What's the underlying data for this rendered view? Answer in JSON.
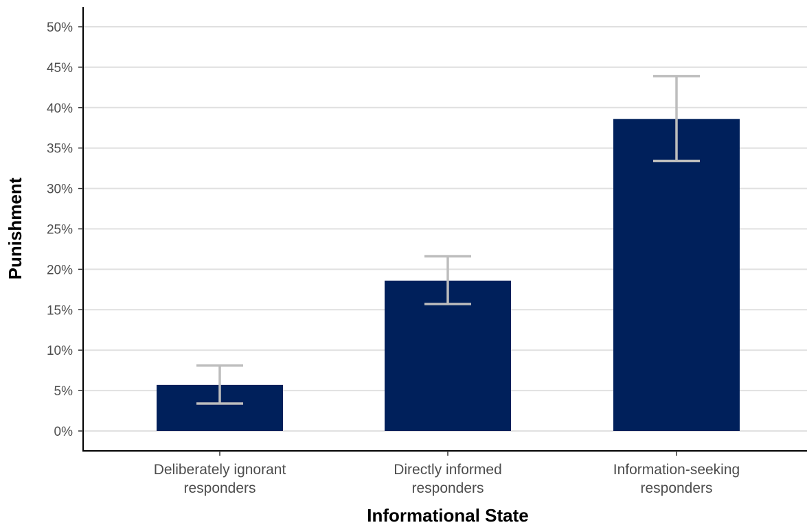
{
  "chart_data": {
    "type": "bar",
    "categories": [
      [
        "Deliberately ignorant",
        "responders"
      ],
      [
        "Directly informed",
        "responders"
      ],
      [
        "Information-seeking",
        "responders"
      ]
    ],
    "values": [
      5.7,
      18.6,
      38.6
    ],
    "error_bars": {
      "lower": [
        3.4,
        15.7,
        33.4
      ],
      "upper": [
        8.1,
        21.6,
        43.9
      ]
    },
    "xlabel": "Informational State",
    "ylabel": "Punishment",
    "ylim": [
      0,
      50
    ],
    "yticks": [
      0,
      5,
      10,
      15,
      20,
      25,
      30,
      35,
      40,
      45,
      50
    ],
    "ytick_labels": [
      "0%",
      "5%",
      "10%",
      "15%",
      "20%",
      "25%",
      "30%",
      "35%",
      "40%",
      "45%",
      "50%"
    ],
    "grid": "horizontal",
    "bar_color": "#00205b",
    "error_bar_color": "#bdbdbd",
    "grid_color": "#e0e0e0"
  }
}
